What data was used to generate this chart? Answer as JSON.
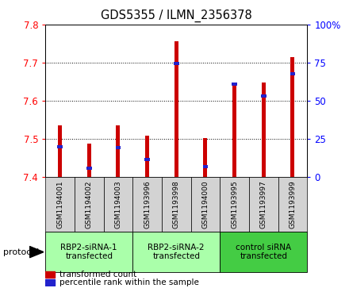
{
  "title": "GDS5355 / ILMN_2356378",
  "samples": [
    "GSM1194001",
    "GSM1194002",
    "GSM1194003",
    "GSM1193996",
    "GSM1193998",
    "GSM1194000",
    "GSM1193995",
    "GSM1193997",
    "GSM1193999"
  ],
  "red_values": [
    7.535,
    7.487,
    7.535,
    7.508,
    7.755,
    7.503,
    7.648,
    7.648,
    7.715
  ],
  "blue_values": [
    7.479,
    7.424,
    7.477,
    7.447,
    7.697,
    7.428,
    7.643,
    7.612,
    7.67
  ],
  "ylim": [
    7.4,
    7.8
  ],
  "yticks": [
    7.4,
    7.5,
    7.6,
    7.7,
    7.8
  ],
  "right_yticks": [
    0,
    25,
    50,
    75,
    100
  ],
  "right_ylim": [
    0,
    100
  ],
  "groups": [
    {
      "label": "RBP2-siRNA-1\ntransfected",
      "start": 0,
      "end": 3
    },
    {
      "label": "RBP2-siRNA-2\ntransfected",
      "start": 3,
      "end": 6
    },
    {
      "label": "control siRNA\ntransfected",
      "start": 6,
      "end": 9
    }
  ],
  "bar_width": 0.13,
  "red_color": "#cc0000",
  "blue_color": "#2222cc",
  "sample_bg_color": "#d3d3d3",
  "group_colors": [
    "#aaffaa",
    "#aaffaa",
    "#44cc44"
  ],
  "protocol_label": "protocol"
}
